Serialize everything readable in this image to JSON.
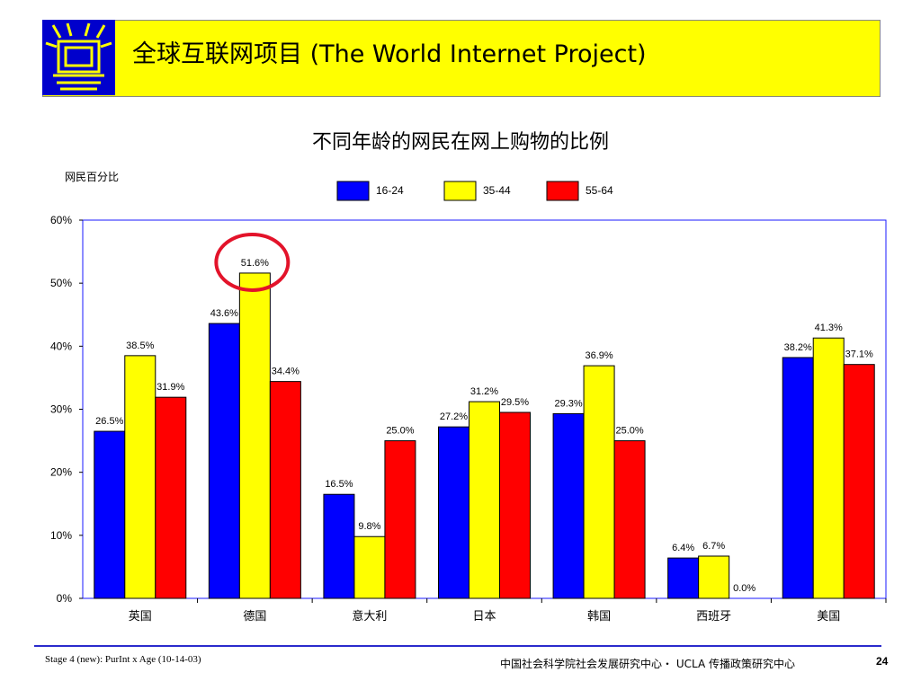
{
  "header": {
    "title": "全球互联网项目 (The World Internet Project)",
    "logo_icon": "window-logo-icon",
    "bar_color": "#ffff00",
    "logo_color": "#0000cc"
  },
  "footer": {
    "left": "Stage 4 (new): PurInt x Age (10-14-03)",
    "center": "中国社会科学院社会发展研究中心・ UCLA 传播政策研究中心",
    "page": "24"
  },
  "chart_data": {
    "type": "bar",
    "title": "不同年龄的网民在网上购物的比例",
    "ylabel": "网民百分比",
    "xlabel": "",
    "ylim": [
      0,
      60
    ],
    "yticks": [
      "0%",
      "10%",
      "20%",
      "30%",
      "40%",
      "50%",
      "60%"
    ],
    "grid": false,
    "legend_position": "top",
    "categories": [
      "英国",
      "德国",
      "意大利",
      "日本",
      "韩国",
      "西班牙",
      "美国"
    ],
    "series": [
      {
        "name": "16-24",
        "color": "#0000ff",
        "values": [
          26.5,
          43.6,
          16.5,
          27.2,
          29.3,
          6.4,
          38.2
        ],
        "labels": [
          "26.5%",
          "43.6%",
          "16.5%",
          "27.2%",
          "29.3%",
          "6.4%",
          "38.2%"
        ]
      },
      {
        "name": "35-44",
        "color": "#ffff00",
        "values": [
          38.5,
          51.6,
          9.8,
          31.2,
          36.9,
          6.7,
          41.3
        ],
        "labels": [
          "38.5%",
          "51.6%",
          "9.8%",
          "31.2%",
          "36.9%",
          "6.7%",
          "41.3%"
        ]
      },
      {
        "name": "55-64",
        "color": "#ff0000",
        "values": [
          31.9,
          34.4,
          25.0,
          29.5,
          25.0,
          0.0,
          37.1
        ],
        "labels": [
          "31.9%",
          "34.4%",
          "25.0%",
          "29.5%",
          "25.0%",
          "0.0%",
          "37.1%"
        ]
      }
    ],
    "highlight": {
      "category": "德国",
      "series": "35-44",
      "marker": "red-circle"
    }
  }
}
